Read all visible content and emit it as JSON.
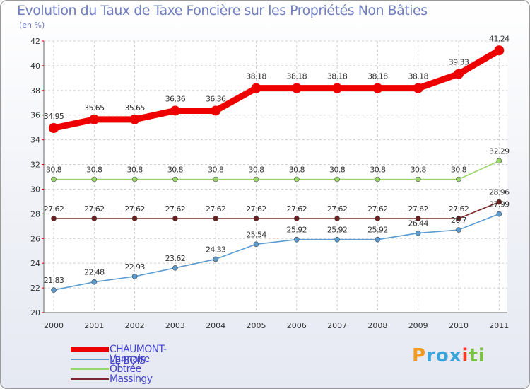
{
  "chart_data": {
    "type": "line",
    "title": "Evolution du Taux de Taxe Foncière sur les Propriétés Non Bâties",
    "ylabel": "(en %)",
    "xlabel": "",
    "ylim": [
      20,
      42
    ],
    "yticks": [
      "20",
      "22",
      "24",
      "26",
      "28",
      "30",
      "32",
      "34",
      "36",
      "38",
      "40",
      "42"
    ],
    "categories": [
      "2000",
      "2001",
      "2002",
      "2003",
      "2004",
      "2005",
      "2006",
      "2007",
      "2008",
      "2009",
      "2010",
      "2011"
    ],
    "grid": true,
    "series": [
      {
        "name": "CHAUMONT-LE-BOIS",
        "color": "#ee0000",
        "values": [
          34.95,
          35.65,
          35.65,
          36.36,
          36.36,
          38.18,
          38.18,
          38.18,
          38.18,
          38.18,
          39.33,
          41.24
        ],
        "labels": [
          "34.95",
          "35.65",
          "35.65",
          "36.36",
          "36.36",
          "38.18",
          "38.18",
          "38.18",
          "38.18",
          "38.18",
          "39.33",
          "41.24"
        ]
      },
      {
        "name": "Vannaire",
        "color": "#5b9bd0",
        "values": [
          21.83,
          22.48,
          22.93,
          23.62,
          24.33,
          25.54,
          25.92,
          25.92,
          25.92,
          26.44,
          26.7,
          27.99
        ],
        "labels": [
          "21.83",
          "22.48",
          "22.93",
          "23.62",
          "24.33",
          "25.54",
          "25.92",
          "25.92",
          "25.92",
          "26.44",
          "26.7",
          "27.99"
        ]
      },
      {
        "name": "Obtrée",
        "color": "#9ad66a",
        "values": [
          30.8,
          30.8,
          30.8,
          30.8,
          30.8,
          30.8,
          30.8,
          30.8,
          30.8,
          30.8,
          30.8,
          32.29
        ],
        "labels": [
          "30.8",
          "30.8",
          "30.8",
          "30.8",
          "30.8",
          "30.8",
          "30.8",
          "30.8",
          "30.8",
          "30.8",
          "30.8",
          "32.29"
        ]
      },
      {
        "name": "Massingy",
        "color": "#7a2a2a",
        "values": [
          27.62,
          27.62,
          27.62,
          27.62,
          27.62,
          27.62,
          27.62,
          27.62,
          27.62,
          27.62,
          27.62,
          28.96
        ],
        "labels": [
          "27.62",
          "27.62",
          "27.62",
          "27.62",
          "27.62",
          "27.62",
          "27.62",
          "27.62",
          "27.62",
          "27.62",
          "27.62",
          "28.96"
        ]
      }
    ]
  },
  "logo": {
    "text": "Proxiti",
    "colors": [
      "#f39a1e",
      "#3aa3d8",
      "#3aa3d8",
      "#3aa3d8",
      "#ee3a2a",
      "#7ac043",
      "#7ac043"
    ]
  }
}
